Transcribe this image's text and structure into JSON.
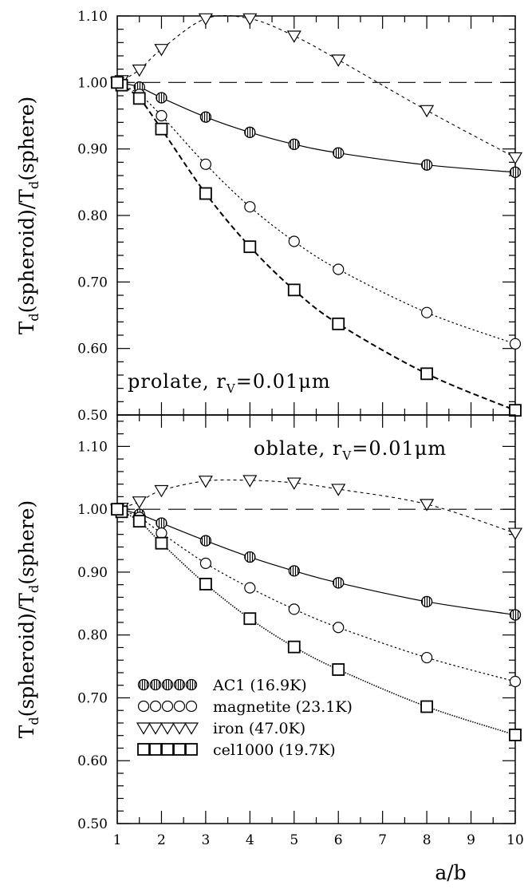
{
  "chart_data": [
    {
      "type": "line",
      "panel": "top",
      "annotation_main": "prolate,  r",
      "annotation_sub": "V",
      "annotation_value": "=0.01μm",
      "ylabel": "Td(spheroid)/Td(sphere)",
      "ylabel_parts": [
        "T",
        "d",
        "(spheroid)/T",
        "d",
        "(sphere)"
      ],
      "xlim": [
        1,
        10
      ],
      "ylim": [
        0.5,
        1.1
      ],
      "yticks": [
        "0.50",
        "0.60",
        "0.70",
        "0.80",
        "0.90",
        "1.00",
        "1.10"
      ],
      "reference_line": 1.0,
      "series": [
        {
          "name": "AC1 (16.9K)",
          "marker": "hatched-circle",
          "line": "solid",
          "x": [
            1,
            1.1,
            1.5,
            2,
            3,
            4,
            5,
            6,
            8,
            10
          ],
          "y": [
            1.0,
            0.999,
            0.993,
            0.977,
            0.948,
            0.925,
            0.907,
            0.894,
            0.876,
            0.865
          ]
        },
        {
          "name": "magnetite (23.1K)",
          "marker": "circle",
          "line": "dotted",
          "x": [
            1,
            1.1,
            1.5,
            2,
            3,
            4,
            5,
            6,
            8,
            10
          ],
          "y": [
            1.0,
            0.997,
            0.982,
            0.95,
            0.877,
            0.813,
            0.761,
            0.719,
            0.654,
            0.607
          ]
        },
        {
          "name": "iron (47.0K)",
          "marker": "triangle-down",
          "line": "dashed",
          "x": [
            1,
            1.1,
            1.5,
            2,
            3,
            4,
            5,
            6,
            8,
            10
          ],
          "y": [
            1.0,
            1.003,
            1.019,
            1.05,
            1.096,
            1.096,
            1.07,
            1.034,
            0.958,
            0.887
          ]
        },
        {
          "name": "cel1000 (19.7K)",
          "marker": "square",
          "line": "long-dashed",
          "x": [
            1,
            1.1,
            1.5,
            2,
            3,
            4,
            5,
            6,
            8,
            10
          ],
          "y": [
            1.0,
            0.996,
            0.976,
            0.93,
            0.833,
            0.753,
            0.688,
            0.637,
            0.562,
            0.507
          ]
        }
      ]
    },
    {
      "type": "line",
      "panel": "bottom",
      "annotation_main": "oblate,  r",
      "annotation_sub": "V",
      "annotation_value": "=0.01μm",
      "ylabel": "Td(spheroid)/Td(sphere)",
      "ylabel_parts": [
        "T",
        "d",
        "(spheroid)/T",
        "d",
        "(sphere)"
      ],
      "xlabel": "a/b",
      "xlim": [
        1,
        10
      ],
      "ylim": [
        0.5,
        1.15
      ],
      "yticks": [
        "0.50",
        "0.60",
        "0.70",
        "0.80",
        "0.90",
        "1.00",
        "1.10"
      ],
      "xticks": [
        "1",
        "2",
        "3",
        "4",
        "5",
        "6",
        "7",
        "8",
        "9",
        "10"
      ],
      "reference_line": 1.0,
      "series": [
        {
          "name": "AC1 (16.9K)",
          "marker": "hatched-circle",
          "line": "solid",
          "x": [
            1,
            1.1,
            1.5,
            2,
            3,
            4,
            5,
            6,
            8,
            10
          ],
          "y": [
            1.0,
            0.999,
            0.992,
            0.978,
            0.95,
            0.924,
            0.902,
            0.883,
            0.853,
            0.832
          ]
        },
        {
          "name": "magnetite (23.1K)",
          "marker": "circle",
          "line": "dotted",
          "x": [
            1,
            1.1,
            1.5,
            2,
            3,
            4,
            5,
            6,
            8,
            10
          ],
          "y": [
            1.0,
            0.998,
            0.987,
            0.962,
            0.914,
            0.875,
            0.841,
            0.812,
            0.764,
            0.726
          ]
        },
        {
          "name": "iron (47.0K)",
          "marker": "triangle-down",
          "line": "dashed",
          "x": [
            1,
            1.1,
            1.5,
            2,
            3,
            4,
            5,
            6,
            8,
            10
          ],
          "y": [
            1.0,
            1.002,
            1.012,
            1.03,
            1.045,
            1.046,
            1.042,
            1.032,
            1.008,
            0.962
          ]
        },
        {
          "name": "cel1000 (19.7K)",
          "marker": "square",
          "line": "fine-dotted",
          "x": [
            1,
            1.1,
            1.5,
            2,
            3,
            4,
            5,
            6,
            8,
            10
          ],
          "y": [
            1.0,
            0.996,
            0.981,
            0.946,
            0.881,
            0.826,
            0.781,
            0.745,
            0.686,
            0.641
          ]
        }
      ],
      "legend": {
        "placement": "bottom-left",
        "entries": [
          {
            "marker": "hatched-circle",
            "label": "AC1  (16.9K)"
          },
          {
            "marker": "circle",
            "label": "magnetite  (23.1K)"
          },
          {
            "marker": "triangle-down",
            "label": "iron  (47.0K)"
          },
          {
            "marker": "square",
            "label": "cel1000  (19.7K)"
          }
        ]
      }
    }
  ]
}
